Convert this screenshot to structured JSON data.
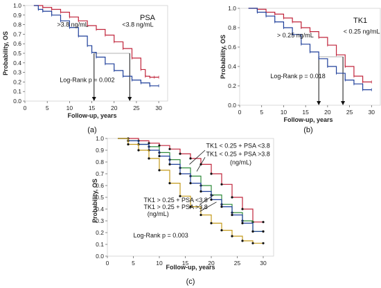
{
  "panels": [
    {
      "caption": "(a)",
      "chart_data": {
        "type": "line",
        "title": "PSA",
        "xlabel": "Follow-up, years",
        "ylabel": "Probability, OS",
        "xlim": [
          0,
          32
        ],
        "ylim": [
          0,
          1.0
        ],
        "xticks": [
          0,
          5,
          10,
          15,
          20,
          25,
          30
        ],
        "yticks": [
          0.0,
          0.1,
          0.2,
          0.3,
          0.4,
          0.5,
          0.6,
          0.7,
          0.8,
          0.9,
          1.0
        ],
        "series": [
          {
            "name": "<3.8 ng/mL",
            "color": "#c0243b",
            "x": [
              2,
              4,
              6,
              8,
              10,
              12,
              14,
              16,
              18,
              20,
              22,
              24,
              26,
              27,
              28,
              29,
              30
            ],
            "y": [
              1.0,
              0.98,
              0.96,
              0.93,
              0.88,
              0.84,
              0.79,
              0.75,
              0.69,
              0.62,
              0.55,
              0.45,
              0.33,
              0.26,
              0.25,
              0.25,
              0.25
            ]
          },
          {
            "name": ">3.8 ng/mL",
            "color": "#1e3f9a",
            "x": [
              2,
              3,
              4,
              6,
              8,
              10,
              12,
              14,
              15,
              16,
              18,
              20,
              22,
              24,
              26,
              28,
              30
            ],
            "y": [
              1.0,
              0.96,
              0.94,
              0.9,
              0.84,
              0.77,
              0.68,
              0.58,
              0.51,
              0.46,
              0.39,
              0.32,
              0.26,
              0.22,
              0.19,
              0.16,
              0.16
            ]
          }
        ],
        "annotations": [
          {
            "text": ">3.8 ng/mL",
            "x": 7.2,
            "y": 0.78
          },
          {
            "text": "<3.8 ng/mL",
            "x": 21.8,
            "y": 0.78
          },
          {
            "text": "Log-Rank p = 0.002",
            "x": 7.8,
            "y": 0.2
          }
        ],
        "median_lines": [
          {
            "x": 15.5,
            "y": 0.5
          },
          {
            "x": 23.5,
            "y": 0.5
          }
        ]
      }
    },
    {
      "caption": "(b)",
      "chart_data": {
        "type": "line",
        "title": "TK1",
        "xlabel": "Follow-up, years",
        "ylabel": "Probability, OS",
        "xlim": [
          0,
          32
        ],
        "ylim": [
          0,
          1.0
        ],
        "xticks": [
          0,
          5,
          10,
          15,
          20,
          25,
          30
        ],
        "yticks": [
          0.0,
          0.2,
          0.4,
          0.6,
          0.8,
          1.0
        ],
        "series": [
          {
            "name": "< 0.25 ng/mL",
            "color": "#c0243b",
            "x": [
              2,
              4,
              6,
              8,
              10,
              12,
              14,
              16,
              18,
              20,
              22,
              24,
              26,
              28,
              30
            ],
            "y": [
              1.0,
              0.99,
              0.96,
              0.94,
              0.9,
              0.86,
              0.8,
              0.76,
              0.7,
              0.62,
              0.52,
              0.4,
              0.3,
              0.24,
              0.24
            ]
          },
          {
            "name": "> 0.25 ng/mL",
            "color": "#1e3f9a",
            "x": [
              2,
              4,
              6,
              8,
              10,
              12,
              14,
              16,
              18,
              20,
              22,
              24,
              26,
              28,
              30
            ],
            "y": [
              1.0,
              0.96,
              0.92,
              0.86,
              0.8,
              0.73,
              0.63,
              0.55,
              0.48,
              0.4,
              0.33,
              0.26,
              0.22,
              0.16,
              0.16
            ]
          }
        ],
        "annotations": [
          {
            "text": "> 0.25 ng/mL",
            "x": 8.5,
            "y": 0.7
          },
          {
            "text": "< 0.25 ng/mL",
            "x": 23.6,
            "y": 0.74
          },
          {
            "text": "Log-Rank p = 0.018",
            "x": 7.0,
            "y": 0.28
          }
        ],
        "median_lines": [
          {
            "x": 18.0,
            "y": 0.5
          },
          {
            "x": 23.5,
            "y": 0.5
          }
        ]
      }
    },
    {
      "caption": "(c)",
      "chart_data": {
        "type": "line",
        "title": "",
        "xlabel": "Follow-up, years",
        "ylabel": "Probability, OS",
        "xlim": [
          0,
          32
        ],
        "ylim": [
          0,
          1.0
        ],
        "xticks": [
          0,
          5,
          10,
          15,
          20,
          25,
          30
        ],
        "yticks": [
          0.0,
          0.1,
          0.2,
          0.3,
          0.4,
          0.5,
          0.6,
          0.7,
          0.8,
          0.9,
          1.0
        ],
        "series": [
          {
            "name": "TK1 < 0.25 + PSA <3.8",
            "color": "#c0243b",
            "x": [
              2,
              4,
              6,
              8,
              10,
              12,
              14,
              16,
              18,
              20,
              22,
              24,
              26,
              28,
              30
            ],
            "y": [
              1.0,
              1.0,
              0.98,
              0.96,
              0.94,
              0.91,
              0.87,
              0.83,
              0.78,
              0.7,
              0.61,
              0.5,
              0.4,
              0.29,
              0.29
            ]
          },
          {
            "name": "TK1 < 0.25 + PSA >3.8",
            "color": "#2e8a3a",
            "x": [
              2,
              4,
              6,
              8,
              10,
              12,
              14,
              16,
              18,
              20,
              22,
              24,
              26,
              28,
              30
            ],
            "y": [
              1.0,
              0.98,
              0.95,
              0.93,
              0.88,
              0.82,
              0.75,
              0.68,
              0.6,
              0.52,
              0.44,
              0.37,
              0.3,
              0.21,
              0.21
            ]
          },
          {
            "name": "TK1 > 0.25 + PSA <3.8",
            "color": "#1e3f9a",
            "x": [
              2,
              4,
              6,
              8,
              10,
              12,
              14,
              16,
              18,
              20,
              22,
              24,
              26,
              28,
              30
            ],
            "y": [
              1.0,
              0.98,
              0.95,
              0.9,
              0.85,
              0.78,
              0.7,
              0.62,
              0.55,
              0.48,
              0.42,
              0.35,
              0.28,
              0.21,
              0.21
            ]
          },
          {
            "name": "TK1 > 0.25 + PSA >3.8",
            "color": "#c49a1a",
            "x": [
              2,
              4,
              6,
              8,
              10,
              12,
              14,
              16,
              18,
              20,
              22,
              24,
              26,
              28,
              30
            ],
            "y": [
              1.0,
              0.95,
              0.9,
              0.83,
              0.73,
              0.62,
              0.51,
              0.42,
              0.35,
              0.28,
              0.22,
              0.17,
              0.13,
              0.11,
              0.11
            ]
          }
        ],
        "annotations": [
          {
            "text": "TK1 < 0.25 + PSA <3.8",
            "x": 19.0,
            "y": 0.92
          },
          {
            "text": "TK1 < 0.25 + PSA >3.8",
            "x": 19.0,
            "y": 0.85
          },
          {
            "text": "(ng/mL)",
            "x": 23.6,
            "y": 0.78
          },
          {
            "text": "TK1 > 0.25 + PSA <3.8",
            "x": 7.0,
            "y": 0.46
          },
          {
            "text": "TK1 > 0.25 + PSA >3.8",
            "x": 7.0,
            "y": 0.4
          },
          {
            "text": "(ng/mL)",
            "x": 7.7,
            "y": 0.34
          },
          {
            "text": "Log-Rank p = 0.003",
            "x": 5.0,
            "y": 0.16
          }
        ],
        "median_lines": []
      }
    }
  ]
}
